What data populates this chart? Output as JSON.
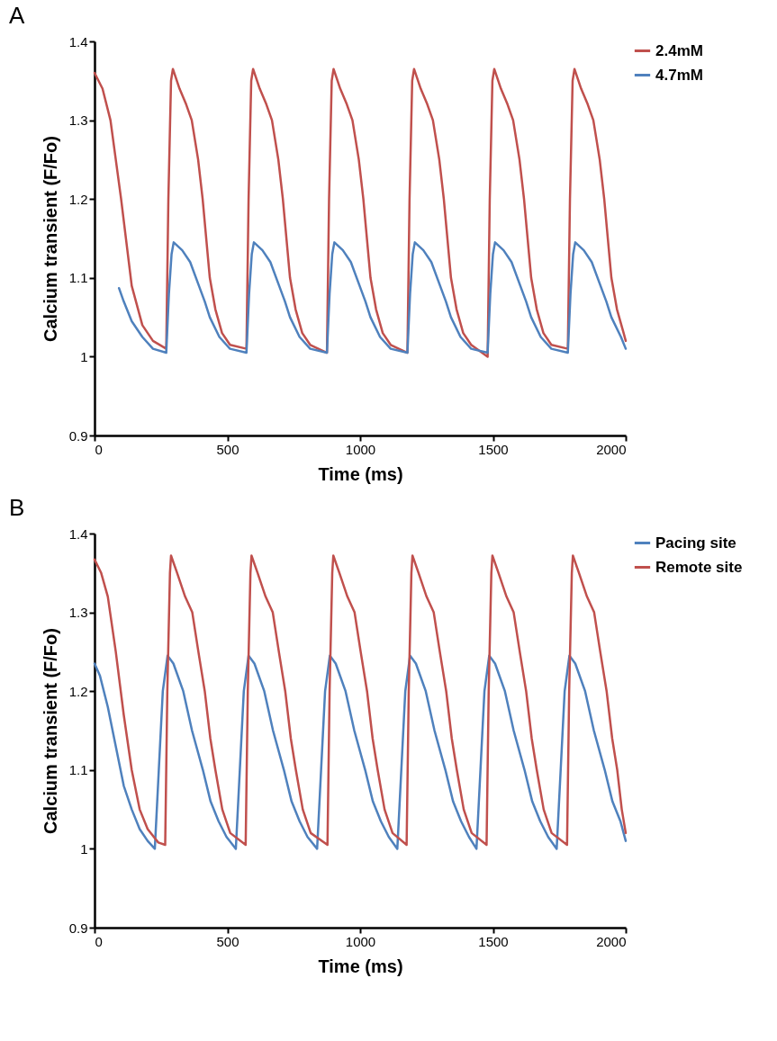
{
  "chart_data": [
    {
      "type": "line",
      "title": "A",
      "xlabel": "Time (ms)",
      "ylabel": "Calcium transient  (F/Fo)",
      "xlim": [
        0,
        2000
      ],
      "xticks": [
        0,
        500,
        1000,
        1500,
        2000
      ],
      "ylim": [
        0.9,
        1.4
      ],
      "yticks": [
        0.9,
        1,
        1.1,
        1.2,
        1.3,
        1.4
      ],
      "grid": false,
      "legend": "right",
      "marker": "none",
      "line_style": "solid",
      "series": [
        {
          "name": "2.4mM",
          "color": "#c0504d",
          "x": [
            0,
            30,
            60,
            100,
            140,
            180,
            220,
            270,
            278,
            288,
            295,
            320,
            345,
            366,
            390,
            407,
            434,
            455,
            480,
            510,
            572,
            580,
            590,
            597,
            622,
            647,
            668,
            692,
            709,
            736,
            757,
            782,
            812,
            875,
            883,
            893,
            900,
            925,
            950,
            971,
            995,
            1012,
            1039,
            1060,
            1085,
            1115,
            1178,
            1186,
            1196,
            1203,
            1228,
            1253,
            1274,
            1298,
            1315,
            1342,
            1363,
            1388,
            1418,
            1480,
            1488,
            1498,
            1505,
            1530,
            1555,
            1576,
            1600,
            1617,
            1644,
            1665,
            1690,
            1720,
            1782,
            1790,
            1800,
            1807,
            1832,
            1857,
            1878,
            1902,
            1919,
            1946,
            1967,
            1992,
            2000
          ],
          "values": [
            1.36,
            1.34,
            1.3,
            1.2,
            1.09,
            1.04,
            1.02,
            1.01,
            1.2,
            1.35,
            1.365,
            1.34,
            1.32,
            1.3,
            1.25,
            1.2,
            1.1,
            1.06,
            1.03,
            1.015,
            1.01,
            1.2,
            1.35,
            1.365,
            1.34,
            1.32,
            1.3,
            1.25,
            1.2,
            1.1,
            1.06,
            1.03,
            1.015,
            1.005,
            1.2,
            1.35,
            1.365,
            1.34,
            1.32,
            1.3,
            1.25,
            1.2,
            1.1,
            1.06,
            1.03,
            1.015,
            1.005,
            1.2,
            1.35,
            1.365,
            1.34,
            1.32,
            1.3,
            1.25,
            1.2,
            1.1,
            1.06,
            1.03,
            1.015,
            1.0,
            1.2,
            1.35,
            1.365,
            1.34,
            1.32,
            1.3,
            1.25,
            1.2,
            1.1,
            1.06,
            1.03,
            1.015,
            1.01,
            1.2,
            1.35,
            1.365,
            1.34,
            1.32,
            1.3,
            1.25,
            1.2,
            1.1,
            1.06,
            1.03,
            1.02
          ]
        },
        {
          "name": "4.7mM",
          "color": "#4f81bd",
          "x": [
            92,
            110,
            140,
            180,
            220,
            270,
            280,
            290,
            298,
            330,
            360,
            393,
            415,
            434,
            470,
            510,
            572,
            582,
            592,
            600,
            632,
            662,
            695,
            717,
            736,
            772,
            812,
            875,
            885,
            895,
            903,
            935,
            965,
            998,
            1020,
            1039,
            1075,
            1115,
            1178,
            1188,
            1198,
            1206,
            1238,
            1268,
            1301,
            1323,
            1342,
            1378,
            1418,
            1480,
            1490,
            1500,
            1508,
            1540,
            1570,
            1603,
            1625,
            1644,
            1680,
            1720,
            1782,
            1792,
            1802,
            1810,
            1842,
            1872,
            1905,
            1927,
            1946,
            1982,
            2000
          ],
          "values": [
            1.087,
            1.07,
            1.045,
            1.025,
            1.01,
            1.005,
            1.08,
            1.13,
            1.145,
            1.135,
            1.12,
            1.09,
            1.07,
            1.05,
            1.025,
            1.01,
            1.005,
            1.08,
            1.13,
            1.145,
            1.135,
            1.12,
            1.09,
            1.07,
            1.05,
            1.025,
            1.01,
            1.005,
            1.08,
            1.13,
            1.145,
            1.135,
            1.12,
            1.09,
            1.07,
            1.05,
            1.025,
            1.01,
            1.005,
            1.08,
            1.13,
            1.145,
            1.135,
            1.12,
            1.09,
            1.07,
            1.05,
            1.025,
            1.01,
            1.005,
            1.08,
            1.13,
            1.145,
            1.135,
            1.12,
            1.09,
            1.07,
            1.05,
            1.025,
            1.01,
            1.005,
            1.08,
            1.13,
            1.145,
            1.135,
            1.12,
            1.09,
            1.07,
            1.05,
            1.025,
            1.01
          ]
        }
      ]
    },
    {
      "type": "line",
      "title": "B",
      "xlabel": "Time (ms)",
      "ylabel": "Calcium transient (F/Fo)",
      "xlim": [
        0,
        2000
      ],
      "xticks": [
        0,
        500,
        1000,
        1500,
        2000
      ],
      "ylim": [
        0.9,
        1.4
      ],
      "yticks": [
        0.9,
        1,
        1.1,
        1.2,
        1.3,
        1.4
      ],
      "grid": false,
      "legend": "right",
      "marker": "none",
      "line_style": "solid",
      "series": [
        {
          "name": "Pacing site",
          "color": "#4f81bd",
          "x": [
            0,
            20,
            50,
            80,
            110,
            140,
            170,
            200,
            227,
            242,
            257,
            275,
            297,
            334,
            367,
            408,
            437,
            467,
            497,
            532,
            547,
            562,
            580,
            602,
            639,
            672,
            713,
            742,
            772,
            802,
            838,
            853,
            868,
            886,
            908,
            945,
            978,
            1019,
            1048,
            1078,
            1108,
            1140,
            1155,
            1170,
            1188,
            1210,
            1247,
            1280,
            1321,
            1350,
            1380,
            1410,
            1438,
            1453,
            1468,
            1486,
            1508,
            1545,
            1578,
            1619,
            1648,
            1678,
            1708,
            1740,
            1755,
            1770,
            1788,
            1810,
            1847,
            1880,
            1921,
            1950,
            1980,
            2000
          ],
          "values": [
            1.235,
            1.22,
            1.18,
            1.13,
            1.08,
            1.05,
            1.025,
            1.01,
            1.0,
            1.1,
            1.2,
            1.245,
            1.235,
            1.2,
            1.15,
            1.1,
            1.06,
            1.035,
            1.015,
            1.0,
            1.1,
            1.2,
            1.245,
            1.235,
            1.2,
            1.15,
            1.1,
            1.06,
            1.035,
            1.015,
            1.0,
            1.1,
            1.2,
            1.245,
            1.235,
            1.2,
            1.15,
            1.1,
            1.06,
            1.035,
            1.015,
            1.0,
            1.1,
            1.2,
            1.245,
            1.235,
            1.2,
            1.15,
            1.1,
            1.06,
            1.035,
            1.015,
            1.0,
            1.1,
            1.2,
            1.245,
            1.235,
            1.2,
            1.15,
            1.1,
            1.06,
            1.035,
            1.015,
            1.0,
            1.1,
            1.2,
            1.245,
            1.235,
            1.2,
            1.15,
            1.1,
            1.06,
            1.035,
            1.01
          ]
        },
        {
          "name": "Remote site",
          "color": "#c0504d",
          "x": [
            0,
            25,
            50,
            80,
            110,
            140,
            170,
            200,
            240,
            266,
            274,
            284,
            288,
            311,
            341,
            368,
            391,
            415,
            436,
            455,
            481,
            511,
            569,
            577,
            587,
            591,
            614,
            644,
            671,
            694,
            718,
            739,
            758,
            784,
            814,
            877,
            885,
            895,
            899,
            922,
            952,
            979,
            1002,
            1026,
            1047,
            1066,
            1092,
            1122,
            1175,
            1183,
            1193,
            1197,
            1220,
            1250,
            1277,
            1300,
            1324,
            1345,
            1364,
            1390,
            1420,
            1476,
            1484,
            1494,
            1498,
            1521,
            1551,
            1578,
            1601,
            1625,
            1646,
            1665,
            1691,
            1721,
            1779,
            1787,
            1797,
            1801,
            1824,
            1854,
            1881,
            1904,
            1928,
            1949,
            1968,
            1985,
            2000
          ],
          "values": [
            1.367,
            1.35,
            1.32,
            1.25,
            1.17,
            1.1,
            1.05,
            1.025,
            1.008,
            1.005,
            1.2,
            1.35,
            1.372,
            1.35,
            1.32,
            1.3,
            1.25,
            1.2,
            1.14,
            1.1,
            1.05,
            1.02,
            1.005,
            1.2,
            1.35,
            1.372,
            1.35,
            1.32,
            1.3,
            1.25,
            1.2,
            1.14,
            1.1,
            1.05,
            1.02,
            1.005,
            1.2,
            1.35,
            1.372,
            1.35,
            1.32,
            1.3,
            1.25,
            1.2,
            1.14,
            1.1,
            1.05,
            1.02,
            1.005,
            1.2,
            1.35,
            1.372,
            1.35,
            1.32,
            1.3,
            1.25,
            1.2,
            1.14,
            1.1,
            1.05,
            1.02,
            1.005,
            1.2,
            1.35,
            1.372,
            1.35,
            1.32,
            1.3,
            1.25,
            1.2,
            1.14,
            1.1,
            1.05,
            1.02,
            1.005,
            1.2,
            1.35,
            1.372,
            1.35,
            1.32,
            1.3,
            1.25,
            1.2,
            1.14,
            1.1,
            1.05,
            1.02
          ]
        }
      ]
    }
  ]
}
